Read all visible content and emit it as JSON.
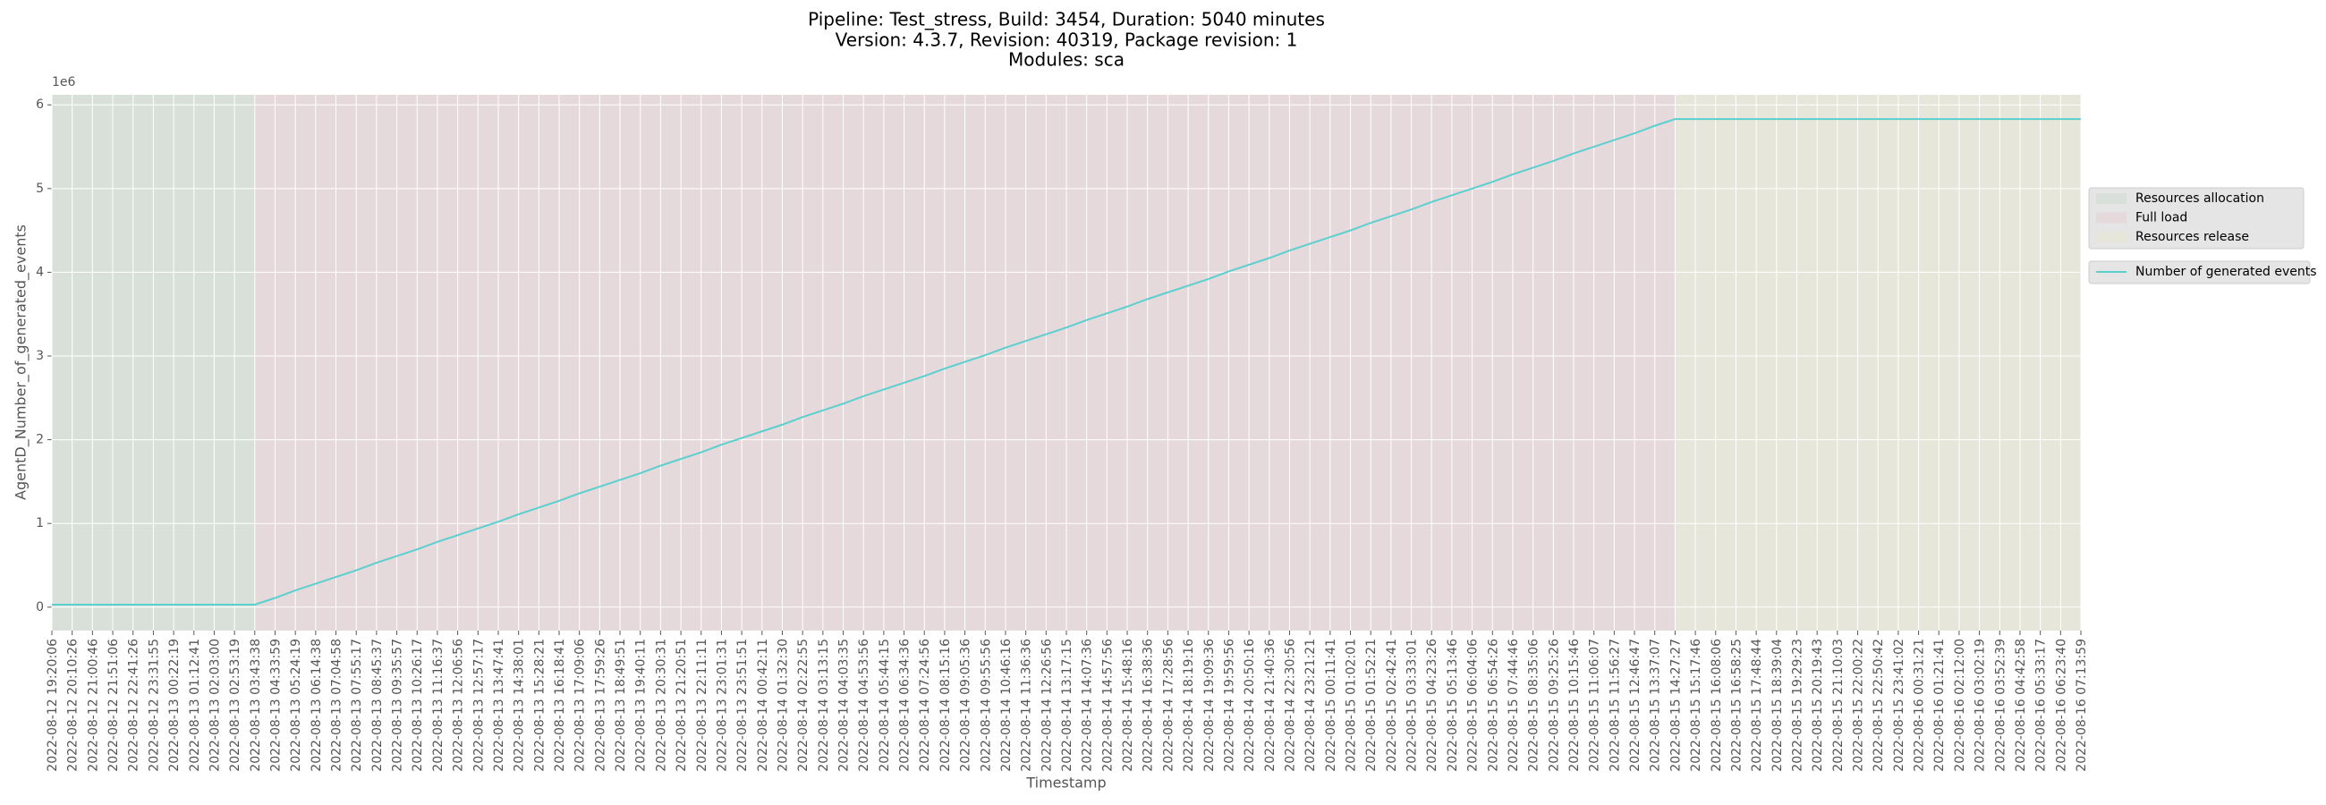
{
  "chart_data": {
    "type": "line",
    "title": [
      "Pipeline: Test_stress, Build: 3454, Duration: 5040 minutes",
      "Version: 4.3.7, Revision: 40319, Package revision: 1",
      "Modules: sca"
    ],
    "x_label": "Timestamp",
    "y_label": "AgentD_Number_of_generated_events",
    "y_offset_label": "1e6",
    "categories": [
      "2022-08-12 19:20:06",
      "2022-08-12 20:10:26",
      "2022-08-12 21:00:46",
      "2022-08-12 21:51:06",
      "2022-08-12 22:41:26",
      "2022-08-12 23:31:55",
      "2022-08-13 00:22:19",
      "2022-08-13 01:12:41",
      "2022-08-13 02:03:00",
      "2022-08-13 02:53:19",
      "2022-08-13 03:43:38",
      "2022-08-13 04:33:59",
      "2022-08-13 05:24:19",
      "2022-08-13 06:14:38",
      "2022-08-13 07:04:58",
      "2022-08-13 07:55:17",
      "2022-08-13 08:45:37",
      "2022-08-13 09:35:57",
      "2022-08-13 10:26:17",
      "2022-08-13 11:16:37",
      "2022-08-13 12:06:56",
      "2022-08-13 12:57:17",
      "2022-08-13 13:47:41",
      "2022-08-13 14:38:01",
      "2022-08-13 15:28:21",
      "2022-08-13 16:18:41",
      "2022-08-13 17:09:06",
      "2022-08-13 17:59:26",
      "2022-08-13 18:49:51",
      "2022-08-13 19:40:11",
      "2022-08-13 20:30:31",
      "2022-08-13 21:20:51",
      "2022-08-13 22:11:11",
      "2022-08-13 23:01:31",
      "2022-08-13 23:51:51",
      "2022-08-14 00:42:11",
      "2022-08-14 01:32:30",
      "2022-08-14 02:22:55",
      "2022-08-14 03:13:15",
      "2022-08-14 04:03:35",
      "2022-08-14 04:53:56",
      "2022-08-14 05:44:15",
      "2022-08-14 06:34:36",
      "2022-08-14 07:24:56",
      "2022-08-14 08:15:16",
      "2022-08-14 09:05:36",
      "2022-08-14 09:55:56",
      "2022-08-14 10:46:16",
      "2022-08-14 11:36:36",
      "2022-08-14 12:26:56",
      "2022-08-14 13:17:15",
      "2022-08-14 14:07:36",
      "2022-08-14 14:57:56",
      "2022-08-14 15:48:16",
      "2022-08-14 16:38:36",
      "2022-08-14 17:28:56",
      "2022-08-14 18:19:16",
      "2022-08-14 19:09:36",
      "2022-08-14 19:59:56",
      "2022-08-14 20:50:16",
      "2022-08-14 21:40:36",
      "2022-08-14 22:30:56",
      "2022-08-14 23:21:21",
      "2022-08-15 00:11:41",
      "2022-08-15 01:02:01",
      "2022-08-15 01:52:21",
      "2022-08-15 02:42:41",
      "2022-08-15 03:33:01",
      "2022-08-15 04:23:26",
      "2022-08-15 05:13:46",
      "2022-08-15 06:04:06",
      "2022-08-15 06:54:26",
      "2022-08-15 07:44:46",
      "2022-08-15 08:35:06",
      "2022-08-15 09:25:26",
      "2022-08-15 10:15:46",
      "2022-08-15 11:06:07",
      "2022-08-15 11:56:27",
      "2022-08-15 12:46:47",
      "2022-08-15 13:37:07",
      "2022-08-15 14:27:27",
      "2022-08-15 15:17:46",
      "2022-08-15 16:08:06",
      "2022-08-15 16:58:25",
      "2022-08-15 17:48:44",
      "2022-08-15 18:39:04",
      "2022-08-15 19:29:23",
      "2022-08-15 20:19:43",
      "2022-08-15 21:10:03",
      "2022-08-15 22:00:22",
      "2022-08-15 22:50:42",
      "2022-08-15 23:41:02",
      "2022-08-16 00:31:21",
      "2022-08-16 01:21:41",
      "2022-08-16 02:12:00",
      "2022-08-16 03:02:19",
      "2022-08-16 03:52:39",
      "2022-08-16 04:42:58",
      "2022-08-16 05:33:17",
      "2022-08-16 06:23:40",
      "2022-08-16 07:13:59"
    ],
    "series": [
      {
        "name": "Number of generated events",
        "color": "#5ccfcf",
        "values": [
          0.03,
          0.03,
          0.03,
          0.03,
          0.03,
          0.03,
          0.03,
          0.03,
          0.03,
          0.03,
          0.03,
          0.11,
          0.2,
          0.28,
          0.36,
          0.44,
          0.53,
          0.61,
          0.69,
          0.78,
          0.86,
          0.94,
          1.02,
          1.11,
          1.19,
          1.27,
          1.36,
          1.44,
          1.52,
          1.6,
          1.69,
          1.77,
          1.85,
          1.94,
          2.02,
          2.1,
          2.18,
          2.27,
          2.35,
          2.43,
          2.52,
          2.6,
          2.68,
          2.76,
          2.85,
          2.93,
          3.01,
          3.1,
          3.18,
          3.26,
          3.34,
          3.43,
          3.51,
          3.59,
          3.68,
          3.76,
          3.84,
          3.92,
          4.01,
          4.09,
          4.17,
          4.26,
          4.34,
          4.42,
          4.5,
          4.59,
          4.67,
          4.75,
          4.84,
          4.92,
          5.0,
          5.08,
          5.17,
          5.25,
          5.33,
          5.42,
          5.5,
          5.58,
          5.66,
          5.75,
          5.83,
          5.83,
          5.83,
          5.83,
          5.83,
          5.83,
          5.83,
          5.83,
          5.83,
          5.83,
          5.83,
          5.83,
          5.83,
          5.83,
          5.83,
          5.83,
          5.83,
          5.83,
          5.83,
          5.83,
          5.83
        ]
      }
    ],
    "regions": [
      {
        "name": "Resources allocation",
        "color": "#d9e0da",
        "start": "2022-08-12 19:20:06",
        "end": "2022-08-13 03:43:38"
      },
      {
        "name": "Full load",
        "color": "#e6d9db",
        "start": "2022-08-13 03:43:38",
        "end": "2022-08-15 14:27:27"
      },
      {
        "name": "Resources release",
        "color": "#e6e6da",
        "start": "2022-08-15 14:27:27",
        "end": "2022-08-16 07:13:59"
      }
    ],
    "ylim": [
      -0.28,
      6.12
    ],
    "yticks": [
      0,
      1,
      2,
      3,
      4,
      5,
      6
    ],
    "grid": true,
    "legend": "outside right",
    "background": "#e5e5e5"
  }
}
